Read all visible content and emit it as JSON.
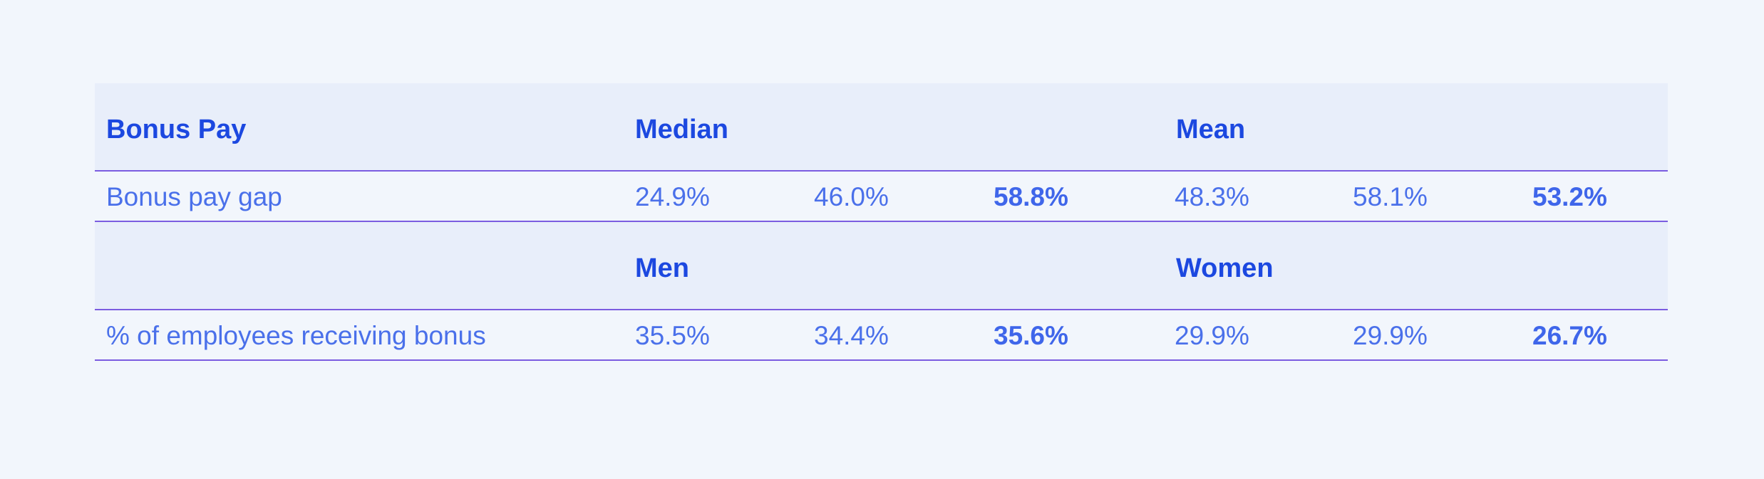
{
  "colors": {
    "background": "#f2f6fc",
    "header_band": "#e8eefa",
    "heading_text": "#1c48e0",
    "value_text": "#4a70ea",
    "rule": "#7b5ce0"
  },
  "sections": [
    {
      "header": {
        "label": "Bonus Pay",
        "group_a": "Median",
        "group_b": "Mean"
      },
      "row": {
        "label": "Bonus pay gap",
        "values": [
          "24.9%",
          "46.0%",
          "58.8%",
          "48.3%",
          "58.1%",
          "53.2%"
        ]
      }
    },
    {
      "header": {
        "label": "",
        "group_a": "Men",
        "group_b": "Women"
      },
      "row": {
        "label": "% of employees receiving bonus",
        "values": [
          "35.5%",
          "34.4%",
          "35.6%",
          "29.9%",
          "29.9%",
          "26.7%"
        ]
      }
    }
  ]
}
